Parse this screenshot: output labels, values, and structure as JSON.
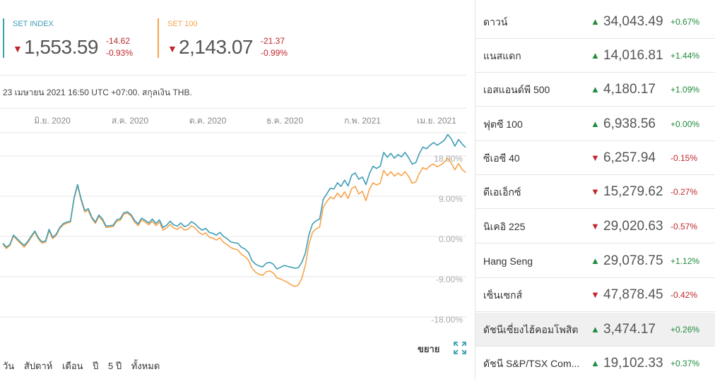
{
  "indices": {
    "set": {
      "name": "SET INDEX",
      "price": "1,553.59",
      "change": "-14.62",
      "percent": "-0.93%",
      "direction": "down",
      "color": "#3e9db6"
    },
    "set100": {
      "name": "SET 100",
      "price": "2,143.07",
      "change": "-21.37",
      "percent": "-0.99%",
      "direction": "down",
      "color": "#f6a44c"
    }
  },
  "timestamp": "23 เมษายน 2021 16:50 UTC +07:00. สกุลเงิน THB.",
  "chart_data": {
    "type": "line",
    "x_tick_labels": [
      "มิ.ย. 2020",
      "ส.ค. 2020",
      "ต.ค. 2020",
      "ธ.ค. 2020",
      "ก.พ. 2021",
      "เม.ย. 2021"
    ],
    "y_tick_labels": [
      "18.00%",
      "9.00%",
      "0.00%",
      "-9.00%",
      "-18.00%"
    ],
    "y_ticks": [
      18,
      9,
      0,
      -9,
      -18
    ],
    "ylim": [
      -19.5,
      25
    ],
    "grid": true,
    "series": [
      {
        "name": "SET INDEX",
        "color": "#3e9db6",
        "values": [
          -1.5,
          -2.4,
          -1.8,
          0.3,
          -0.5,
          -1.3,
          -2.0,
          -1.1,
          0.1,
          1.2,
          -0.3,
          -1.2,
          -1.0,
          1.6,
          -0.2,
          0.5,
          2.0,
          2.9,
          3.2,
          3.4,
          8.6,
          11.6,
          8.4,
          5.8,
          6.2,
          4.3,
          3.2,
          4.8,
          3.9,
          2.3,
          2.4,
          2.5,
          3.7,
          4.0,
          5.3,
          5.5,
          4.9,
          3.6,
          2.8,
          4.1,
          3.6,
          3.0,
          3.9,
          2.9,
          3.7,
          2.0,
          2.5,
          3.4,
          2.6,
          2.3,
          3.0,
          2.2,
          2.5,
          3.3,
          2.8,
          2.0,
          1.4,
          1.8,
          0.9,
          0.7,
          0.3,
          0.9,
          0.0,
          -0.5,
          -1.2,
          -1.4,
          -1.5,
          -2.4,
          -2.8,
          -3.6,
          -5.4,
          -6.2,
          -6.6,
          -6.8,
          -6.0,
          -5.8,
          -6.2,
          -7.3,
          -6.9,
          -6.5,
          -6.7,
          -6.9,
          -7.1,
          -7.0,
          -5.8,
          -3.7,
          0.4,
          2.8,
          3.5,
          3.9,
          8.3,
          9.5,
          10.8,
          10.6,
          12.0,
          11.2,
          12.6,
          11.3,
          13.7,
          14.2,
          12.8,
          13.3,
          11.6,
          14.1,
          15.7,
          15.2,
          15.7,
          18.8,
          17.7,
          18.6,
          17.5,
          18.3,
          17.8,
          18.8,
          17.6,
          16.2,
          16.5,
          18.5,
          20.0,
          19.6,
          20.4,
          21.0,
          20.4,
          20.9,
          21.5,
          22.8,
          21.8,
          20.2,
          21.7,
          20.7,
          19.9
        ],
        "x_index_note": ""
      },
      {
        "name": "SET 100",
        "color": "#f6a44c",
        "values": [
          -1.8,
          -2.7,
          -2.0,
          0.1,
          -0.8,
          -1.6,
          -2.4,
          -1.4,
          -0.2,
          1.0,
          -0.6,
          -1.5,
          -1.3,
          1.3,
          -0.5,
          0.2,
          1.8,
          2.6,
          3.0,
          3.2,
          8.4,
          11.4,
          8.1,
          5.5,
          5.8,
          4.0,
          2.9,
          4.5,
          3.5,
          2.0,
          2.1,
          2.2,
          3.4,
          3.6,
          5.0,
          5.2,
          4.6,
          3.2,
          2.4,
          3.7,
          3.2,
          2.6,
          3.4,
          2.4,
          3.2,
          1.4,
          1.9,
          2.7,
          1.9,
          1.6,
          2.2,
          1.4,
          1.6,
          2.4,
          1.9,
          1.0,
          0.4,
          0.8,
          -0.2,
          -0.4,
          -0.8,
          -0.3,
          -1.3,
          -1.8,
          -2.5,
          -2.8,
          -3.0,
          -4.0,
          -4.5,
          -5.3,
          -7.1,
          -8.0,
          -8.5,
          -8.7,
          -7.9,
          -7.7,
          -8.2,
          -9.3,
          -9.5,
          -9.9,
          -10.3,
          -10.8,
          -11.2,
          -10.9,
          -9.4,
          -6.4,
          -1.7,
          0.9,
          1.7,
          2.1,
          6.5,
          7.8,
          8.8,
          8.4,
          9.7,
          8.7,
          10.0,
          8.5,
          10.7,
          11.2,
          9.5,
          10.1,
          8.0,
          10.6,
          12.0,
          11.5,
          11.9,
          14.8,
          13.6,
          14.5,
          13.5,
          14.2,
          13.6,
          14.5,
          13.4,
          11.9,
          12.2,
          14.1,
          15.4,
          15.0,
          15.8,
          16.2,
          15.6,
          16.0,
          16.6,
          17.5,
          16.4,
          14.9,
          16.3,
          15.0,
          14.3
        ]
      }
    ]
  },
  "controls": {
    "expand_label": "ขยาย",
    "ranges": [
      "วัน",
      "สัปดาห์",
      "เดือน",
      "ปี",
      "5 ปี",
      "ทั้งหมด"
    ]
  },
  "markets": [
    {
      "name": "ดาวน์",
      "direction": "up",
      "price": "34,043.49",
      "change": "+0.67%"
    },
    {
      "name": "แนสแดก",
      "direction": "up",
      "price": "14,016.81",
      "change": "+1.44%"
    },
    {
      "name": "เอสแอนด์พี 500",
      "direction": "up",
      "price": "4,180.17",
      "change": "+1.09%"
    },
    {
      "name": "ฟุตซี 100",
      "direction": "up",
      "price": "6,938.56",
      "change": "+0.00%"
    },
    {
      "name": "ซีเอซี 40",
      "direction": "down",
      "price": "6,257.94",
      "change": "-0.15%"
    },
    {
      "name": "ดีเอเอ็กซ์",
      "direction": "down",
      "price": "15,279.62",
      "change": "-0.27%"
    },
    {
      "name": "นิเคอิ 225",
      "direction": "down",
      "price": "29,020.63",
      "change": "-0.57%"
    },
    {
      "name": "Hang Seng",
      "direction": "up",
      "price": "29,078.75",
      "change": "+1.12%"
    },
    {
      "name": "เซ็นเซกส์",
      "direction": "down",
      "price": "47,878.45",
      "change": "-0.42%"
    },
    {
      "name": "ดัชนีเซี่ยงไฮ้คอมโพสิต",
      "direction": "up",
      "price": "3,474.17",
      "change": "+0.26%",
      "highlighted": true
    },
    {
      "name": "ดัชนี S&P/TSX Com...",
      "direction": "up",
      "price": "19,102.33",
      "change": "+0.37%"
    }
  ]
}
